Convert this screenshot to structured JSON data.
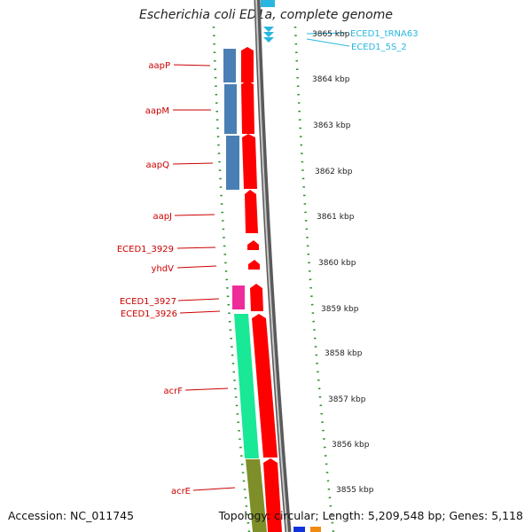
{
  "title": "Escherichia coli ED1a, complete genome",
  "footer": {
    "accession": "Accession: NC_011745",
    "summary": "Topology: circular; Length: 5,209,548 bp; Genes: 5,118"
  },
  "colors": {
    "cds": "#ff0000",
    "cog_blue": "#4a7fb5",
    "cog_pink": "#ee2c9a",
    "cog_green": "#19e896",
    "cog_olive": "#7e8f2a",
    "rna": "#29b6e0",
    "ticks": "#2a8f2a",
    "backbone": "#808080"
  },
  "ruler": [
    {
      "label": "3865 kbp"
    },
    {
      "label": "3864 kbp"
    },
    {
      "label": "3863 kbp"
    },
    {
      "label": "3862 kbp"
    },
    {
      "label": "3861 kbp"
    },
    {
      "label": "3860 kbp"
    },
    {
      "label": "3859 kbp"
    },
    {
      "label": "3858 kbp"
    },
    {
      "label": "3857 kbp"
    },
    {
      "label": "3856 kbp"
    },
    {
      "label": "3855 kbp"
    }
  ],
  "genes": [
    {
      "name": "aapP"
    },
    {
      "name": "aapM"
    },
    {
      "name": "aapQ"
    },
    {
      "name": "aapJ"
    },
    {
      "name": "ECED1_3929"
    },
    {
      "name": "yhdV"
    },
    {
      "name": "ECED1_3927"
    },
    {
      "name": "ECED1_3926"
    },
    {
      "name": "acrF"
    },
    {
      "name": "acrE"
    }
  ],
  "rna_features": [
    {
      "name": "ECED1_tRNA63"
    },
    {
      "name": "ECED1_5S_2"
    }
  ]
}
